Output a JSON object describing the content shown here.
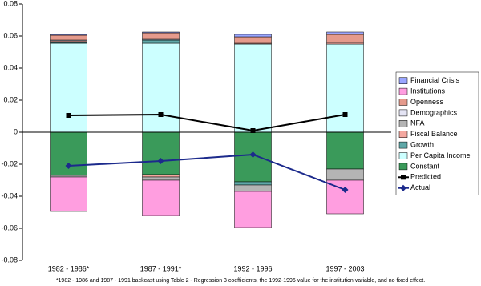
{
  "chart_data": {
    "type": "bar",
    "stacked": true,
    "categories": [
      "1982 - 1986*",
      "1987 - 1991*",
      "1992 - 1996",
      "1997 - 2003"
    ],
    "series": [
      {
        "name": "Constant",
        "color": "#3a9a5a",
        "values": [
          -0.027,
          -0.0265,
          -0.031,
          -0.023
        ]
      },
      {
        "name": "Per Capita Income",
        "color": "#ccffff",
        "values": [
          0.0555,
          0.0555,
          0.055,
          0.055
        ]
      },
      {
        "name": "Growth",
        "color": "#5fa8a8",
        "values": [
          0.0005,
          0.002,
          -0.002,
          0
        ]
      },
      {
        "name": "Fiscal Balance",
        "color": "#f4a8a0",
        "values": [
          0.001,
          -0.0015,
          0.0005,
          0.001
        ]
      },
      {
        "name": "NFA",
        "color": "#b4b4b4",
        "values": [
          -0.001,
          -0.002,
          -0.004,
          -0.007
        ]
      },
      {
        "name": "Demographics",
        "color": "#e4e4f4",
        "values": [
          0.0005,
          0.0005,
          0,
          0
        ]
      },
      {
        "name": "Openness",
        "color": "#e59a8c",
        "values": [
          0.003,
          0.004,
          0.004,
          0.005
        ]
      },
      {
        "name": "Institutions",
        "color": "#ff9ee0",
        "values": [
          -0.0215,
          -0.022,
          -0.0225,
          -0.021
        ]
      },
      {
        "name": "Financial Crisis",
        "color": "#9aa6ff",
        "values": [
          0.0005,
          0.0005,
          0.0015,
          0.0015
        ]
      }
    ],
    "lines": [
      {
        "name": "Predicted",
        "color": "#000000",
        "marker": "square",
        "values": [
          0.0105,
          0.011,
          0.001,
          0.011
        ]
      },
      {
        "name": "Actual",
        "color": "#1c2a8c",
        "marker": "diamond",
        "values": [
          -0.021,
          -0.018,
          -0.014,
          -0.036
        ]
      }
    ],
    "ylim": [
      -0.08,
      0.08
    ],
    "yticks": [
      0.08,
      0.06,
      0.04,
      0.02,
      0,
      -0.02,
      -0.04,
      -0.06,
      -0.08
    ],
    "legend": "right",
    "footnote": "*1982 - 1986 and 1987 - 1991 backcast using Table 2 - Regression 3 coefficients, the 1992-1996 value for the institution variable, and no fixed effect."
  }
}
